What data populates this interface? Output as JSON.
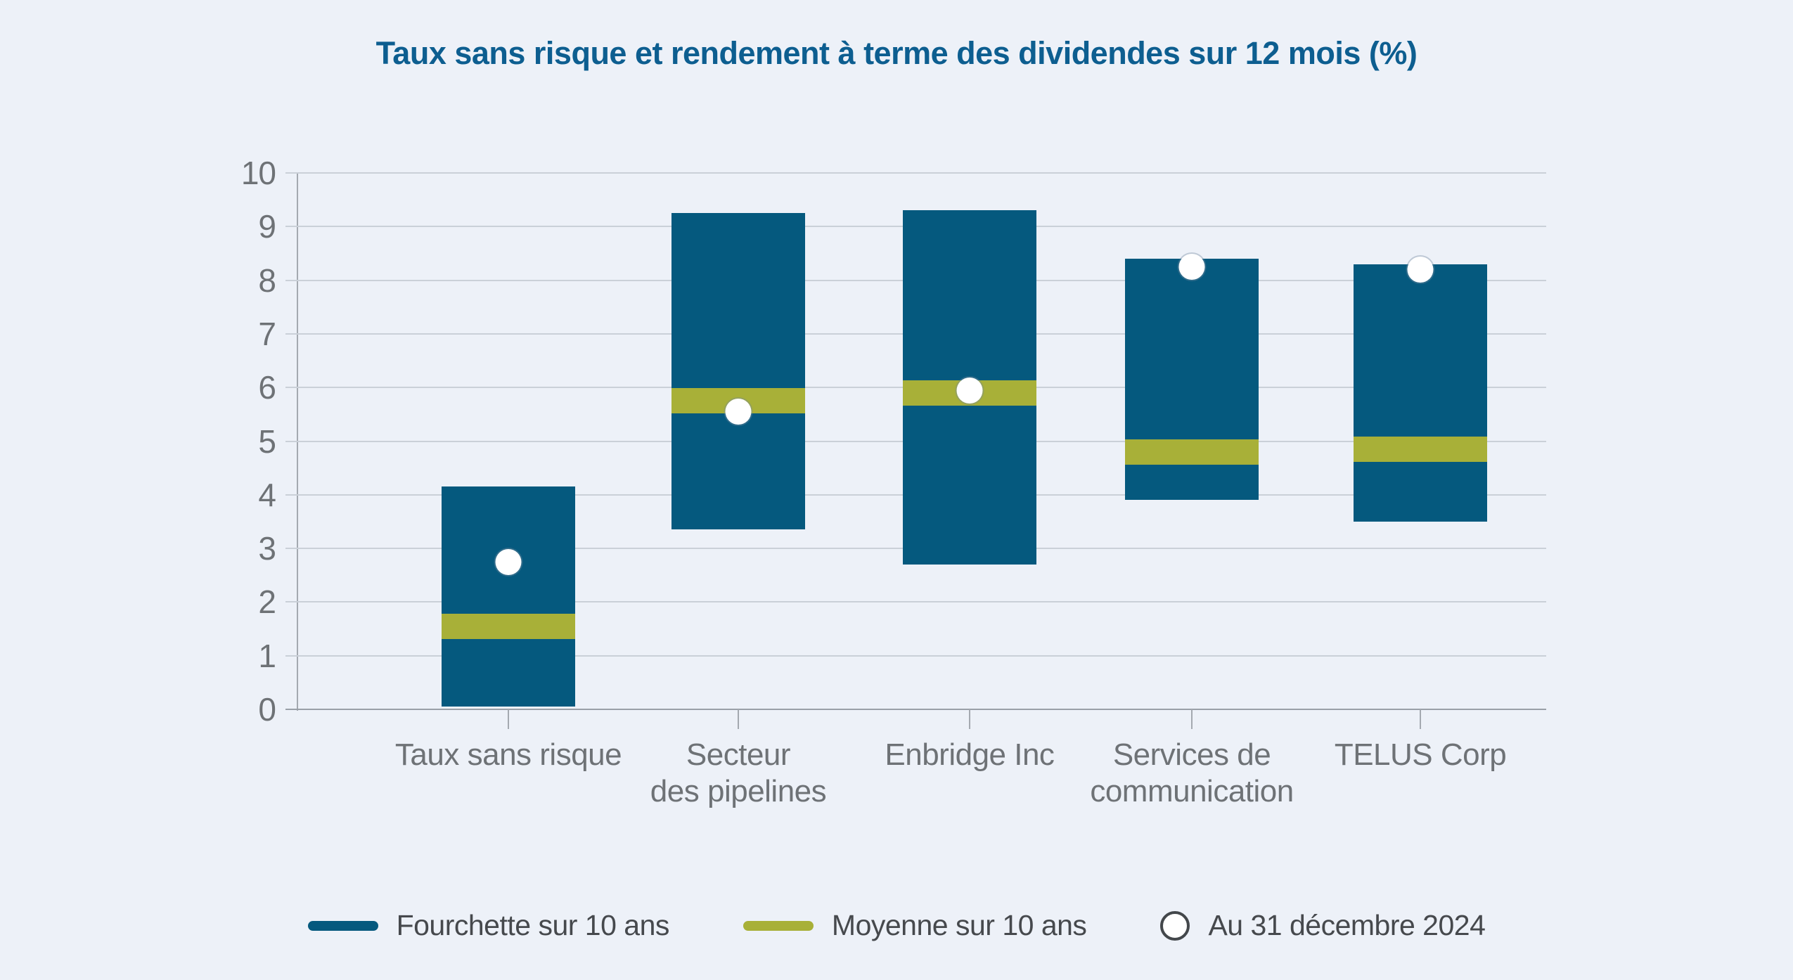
{
  "title": "Taux sans risque et rendement à terme des dividendes sur 12 mois (%)",
  "colors": {
    "range_blue": "#05597e",
    "average_olive": "#a8b038",
    "point_white": "#ffffff",
    "title_blue": "#0d5e90",
    "background": "#edf1f8"
  },
  "chart_data": {
    "type": "bar",
    "variant": "floating-range-bar",
    "title": "Taux sans risque et rendement à terme des dividendes sur 12 mois (%)",
    "categories": [
      "Taux sans risque",
      "Secteur des pipelines",
      "Enbridge Inc",
      "Services de communication",
      "TELUS Corp"
    ],
    "categories_lines": [
      [
        "Taux sans risque"
      ],
      [
        "Secteur",
        "des pipelines"
      ],
      [
        "Enbridge Inc"
      ],
      [
        "Services de",
        "communication"
      ],
      [
        "TELUS Corp"
      ]
    ],
    "xlabel": "",
    "ylabel": "",
    "ylim": [
      0,
      10
    ],
    "yticks": [
      0,
      1,
      2,
      3,
      4,
      5,
      6,
      7,
      8,
      9,
      10
    ],
    "grid": "horizontal",
    "legend_position": "bottom",
    "series": [
      {
        "name": "Fourchette sur 10 ans",
        "type": "range",
        "color": "#05597e",
        "values": [
          {
            "low": 0.05,
            "high": 4.15
          },
          {
            "low": 3.35,
            "high": 9.25
          },
          {
            "low": 2.7,
            "high": 9.3
          },
          {
            "low": 3.9,
            "high": 8.4
          },
          {
            "low": 3.5,
            "high": 8.3
          }
        ]
      },
      {
        "name": "Moyenne sur 10 ans",
        "type": "band",
        "color": "#a8b038",
        "band_thickness_units": 0.47,
        "values": [
          1.55,
          5.75,
          5.9,
          4.8,
          4.85
        ]
      },
      {
        "name": "Au 31 décembre 2024",
        "type": "point",
        "color": "#ffffff",
        "values": [
          2.75,
          5.55,
          5.95,
          8.25,
          8.2
        ]
      }
    ]
  }
}
